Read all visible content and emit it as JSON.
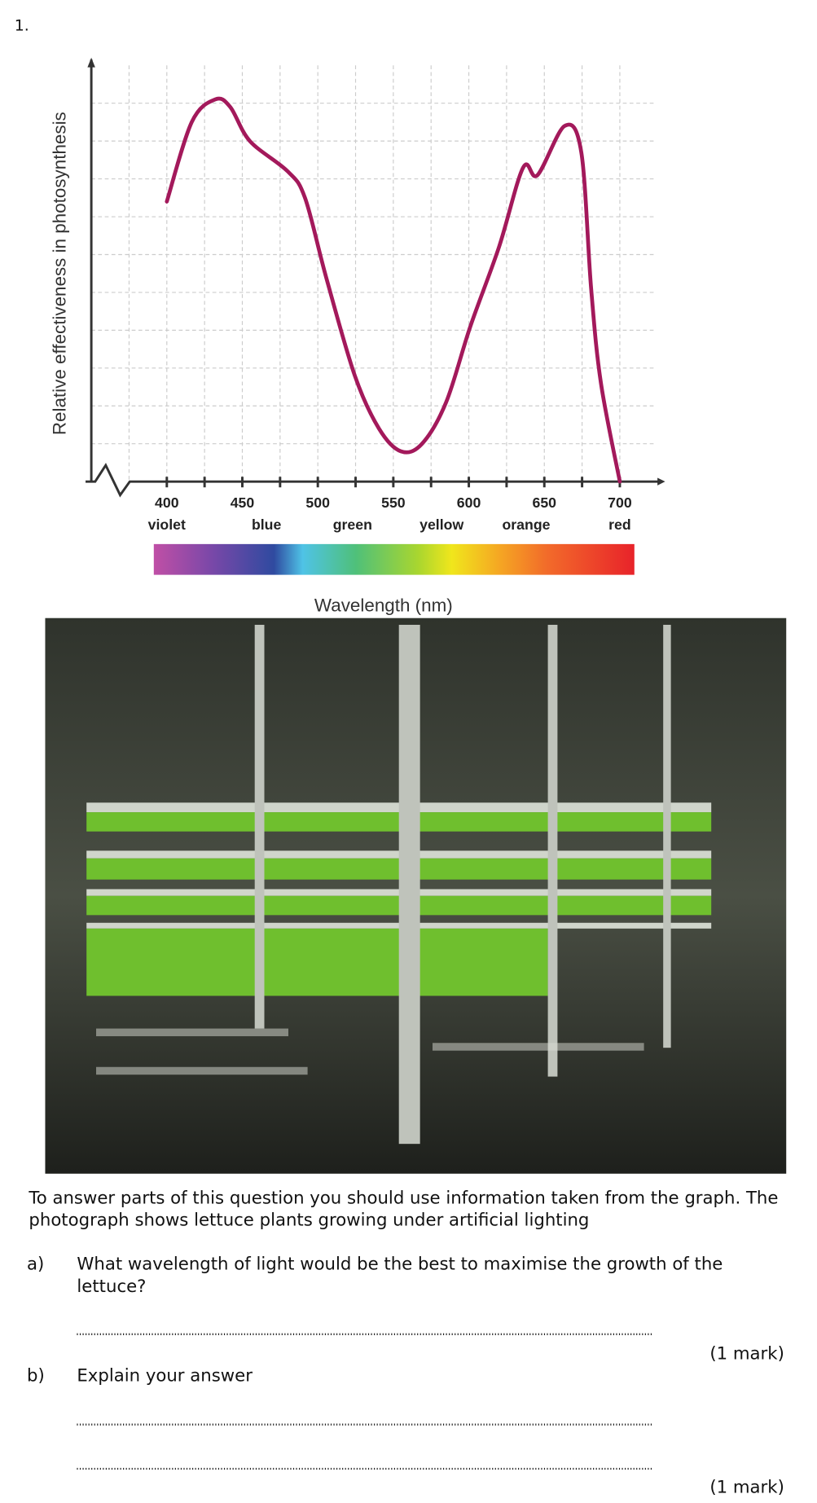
{
  "question_number": "1.",
  "chart_data": {
    "type": "line",
    "y_label": "Relative effectiveness in photosynthesis",
    "x_label": "Wavelength (nm)",
    "x": [
      400,
      416.5,
      432,
      442,
      455,
      480,
      491.5,
      505.5,
      524.5,
      540.5,
      555,
      569,
      585,
      601,
      620,
      636,
      645.5,
      663.5,
      674.5,
      681,
      687.5,
      700
    ],
    "series": [
      {
        "color": "#a3195b",
        "values": [
          7.4,
          9.5,
          10.1,
          9.9,
          9.0,
          8.2,
          7.5,
          5.4,
          2.8,
          1.4,
          0.8,
          1.0,
          2.1,
          4.1,
          6.2,
          8.3,
          8.1,
          9.4,
          8.7,
          5.1,
          2.6,
          0
        ]
      }
    ],
    "xlim": [
      350,
      730
    ],
    "xticks": [
      400,
      450,
      500,
      550,
      600,
      650,
      700
    ],
    "xminorticks": [
      375,
      425,
      475,
      525,
      575,
      625,
      675
    ],
    "ylim": [
      0,
      11
    ],
    "yticks": [
      1,
      2,
      3,
      4,
      5,
      6,
      7,
      8,
      9,
      10
    ],
    "ytick_labels": false,
    "grid": true,
    "spectrum_labels": [
      {
        "value": 400,
        "label": "violet"
      },
      {
        "value": 466,
        "label": "blue"
      },
      {
        "value": 523,
        "label": "green"
      },
      {
        "value": 582,
        "label": "yellow"
      },
      {
        "value": 638,
        "label": "orange"
      },
      {
        "value": 700,
        "label": "red"
      }
    ]
  },
  "intro": [
    "To answer parts of this question you should use information taken from the graph.  The",
    "photograph shows lettuce plants growing under artificial lighting"
  ],
  "parts": [
    {
      "label": "a)",
      "question": [
        "What wavelength of light would be the best to maximise the growth of the",
        "lettuce?"
      ],
      "marks": "(1 mark)"
    },
    {
      "label": "b)",
      "question": [
        "Explain your answer"
      ],
      "marks": "(1 mark)"
    }
  ]
}
